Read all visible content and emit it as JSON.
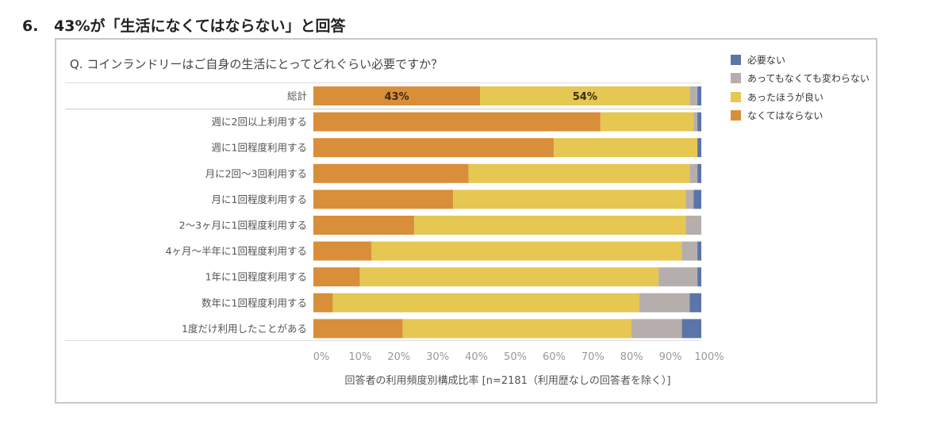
{
  "heading": {
    "number": "6.",
    "text": "43%が「生活になくてはならない」と回答"
  },
  "chart_data": {
    "type": "bar",
    "orientation": "horizontal",
    "stacked": true,
    "title": "Q. コインランドリーはご自身の生活にとってどれぐらい必要ですか？",
    "xlabel": "回答者の利用頻度別構成比率 [n=2181（利用歴なしの回答者を除く）]",
    "xlim": [
      0,
      100
    ],
    "xticks": [
      "0%",
      "10%",
      "20%",
      "30%",
      "40%",
      "50%",
      "60%",
      "70%",
      "80%",
      "90%",
      "100%"
    ],
    "legend_position": "right",
    "categories": [
      "総計",
      "週に2回以上利用する",
      "週に1回程度利用する",
      "月に2回～3回利用する",
      "月に1回程度利用する",
      "2～3ヶ月に1回程度利用する",
      "4ヶ月～半年に1回程度利用する",
      "1年に1回程度利用する",
      "数年に1回程度利用する",
      "1度だけ利用したことがある"
    ],
    "series": [
      {
        "name": "なくてはならない",
        "color": "#d98e3a",
        "values": [
          43,
          74,
          62,
          40,
          36,
          26,
          15,
          12,
          5,
          23
        ]
      },
      {
        "name": "あったほうが良い",
        "color": "#e5c752",
        "values": [
          54,
          24,
          37,
          57,
          60,
          70,
          80,
          77,
          79,
          59
        ]
      },
      {
        "name": "あってもなくても変わらない",
        "color": "#b6adad",
        "values": [
          2,
          1,
          0,
          2,
          2,
          4,
          4,
          10,
          13,
          13
        ]
      },
      {
        "name": "必要ない",
        "color": "#5b75a8",
        "values": [
          1,
          1,
          1,
          1,
          2,
          0,
          1,
          1,
          3,
          5
        ]
      }
    ],
    "data_labels": [
      {
        "category": "総計",
        "series": "なくてはならない",
        "text": "43%"
      },
      {
        "category": "総計",
        "series": "あったほうが良い",
        "text": "54%"
      }
    ],
    "grid": false
  }
}
